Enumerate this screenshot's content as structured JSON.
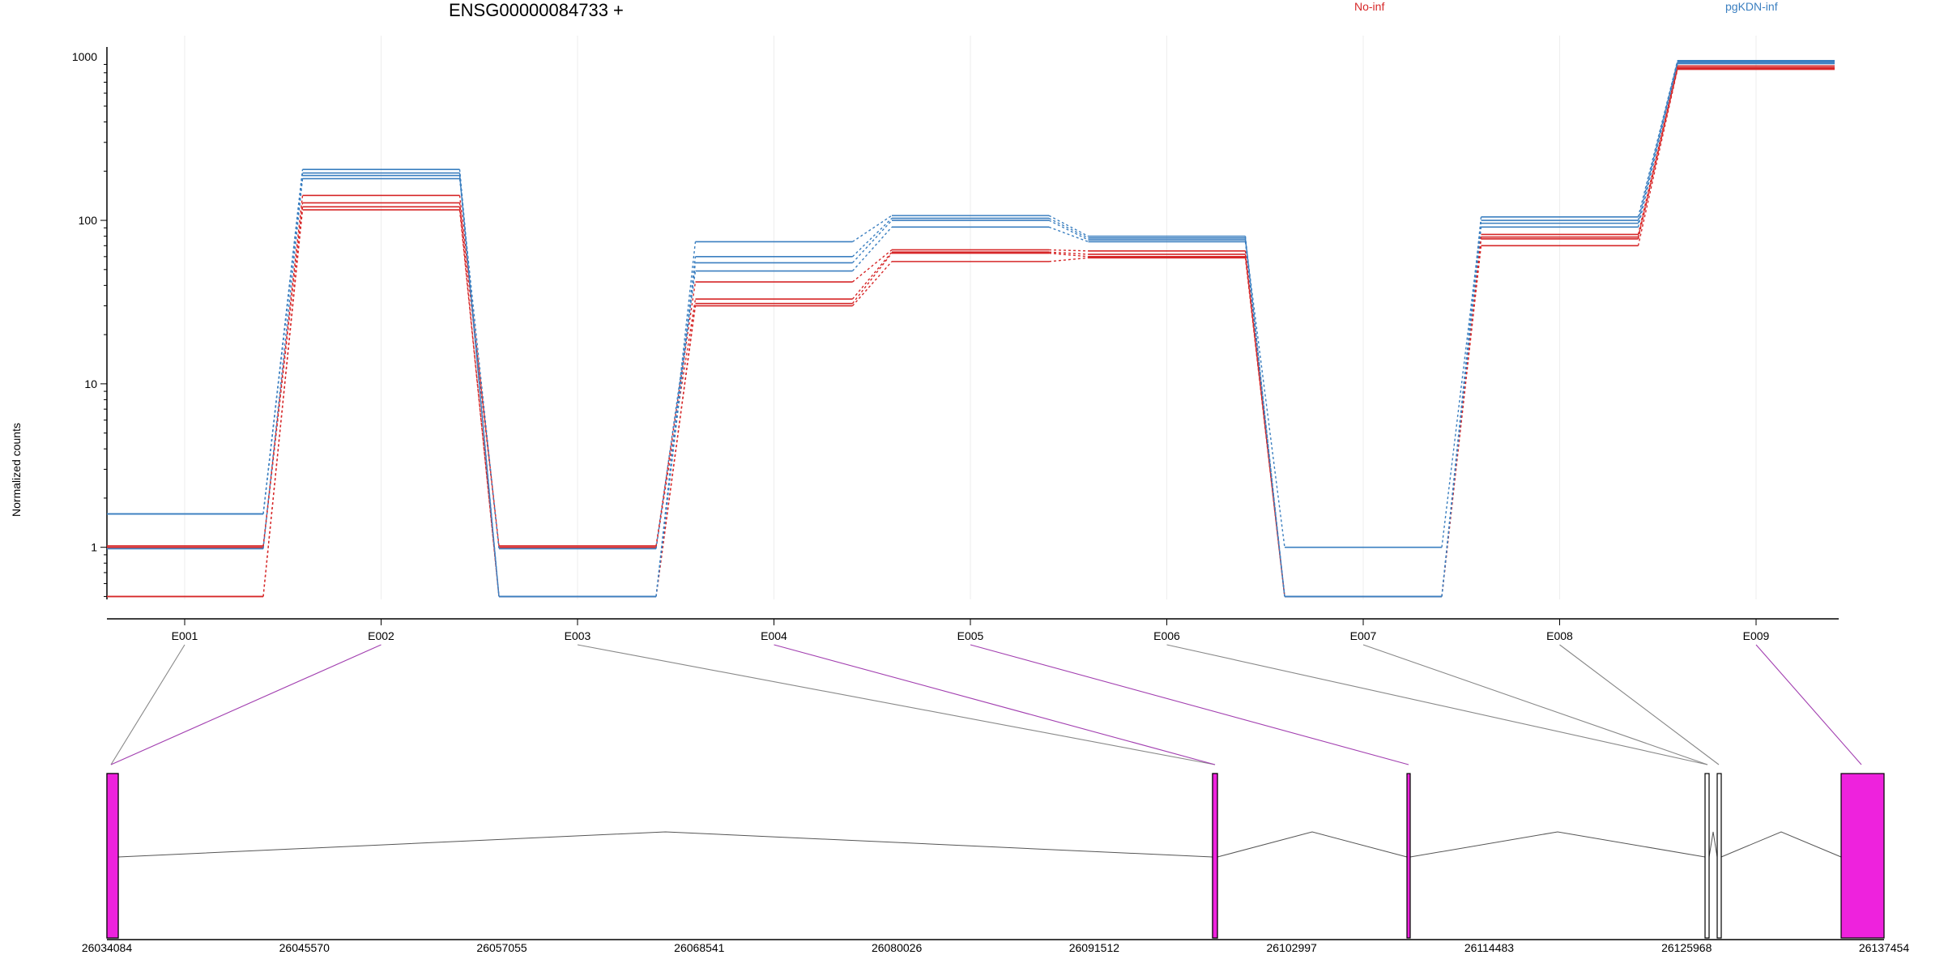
{
  "title": "ENSG00000084733 +",
  "chart_data": {
    "type": "line",
    "ylabel": "Normalized counts",
    "yscale": "log",
    "ylim": [
      0.48,
      1000
    ],
    "yticks": [
      1,
      10,
      100,
      1000
    ],
    "ytick_labels": [
      "1",
      "10",
      "100",
      "1000"
    ],
    "categories": [
      "E001",
      "E002",
      "E003",
      "E004",
      "E005",
      "E006",
      "E007",
      "E008",
      "E009"
    ],
    "legend": [
      {
        "label": "No-inf",
        "color": "#d62728"
      },
      {
        "label": "pgKDN-inf",
        "color": "#3b7fc0"
      }
    ],
    "series": [
      {
        "group": "No-inf",
        "color": "#d62728",
        "values": [
          1.02,
          142,
          1.02,
          42,
          66,
          65,
          0.5,
          82,
          880
        ]
      },
      {
        "group": "No-inf",
        "color": "#d62728",
        "values": [
          1.0,
          128,
          1.0,
          33,
          64,
          62,
          0.5,
          79,
          860
        ]
      },
      {
        "group": "No-inf",
        "color": "#d62728",
        "values": [
          0.5,
          121,
          0.5,
          31,
          63,
          60,
          0.5,
          77,
          850
        ]
      },
      {
        "group": "No-inf",
        "color": "#d62728",
        "values": [
          0.5,
          116,
          0.5,
          30,
          56,
          59,
          0.5,
          70,
          840
        ]
      },
      {
        "group": "pgKDN-inf",
        "color": "#3b7fc0",
        "values": [
          1.6,
          205,
          0.5,
          74,
          107,
          80,
          0.5,
          105,
          950
        ]
      },
      {
        "group": "pgKDN-inf",
        "color": "#3b7fc0",
        "values": [
          1.6,
          195,
          0.5,
          60,
          103,
          78,
          0.5,
          100,
          940
        ]
      },
      {
        "group": "pgKDN-inf",
        "color": "#3b7fc0",
        "values": [
          1.6,
          188,
          0.5,
          55,
          100,
          76,
          1.0,
          96,
          925
        ]
      },
      {
        "group": "pgKDN-inf",
        "color": "#3b7fc0",
        "values": [
          0.98,
          180,
          0.98,
          49,
          91,
          74,
          0.5,
          91,
          910
        ]
      }
    ],
    "gene_model": {
      "coord_labels": [
        "26034084",
        "26045570",
        "26057055",
        "26068541",
        "26080026",
        "26091512",
        "26102997",
        "26114483",
        "26125968",
        "26137454"
      ],
      "highlight_color": "#ee22dd",
      "exons": [
        {
          "id": "E001",
          "highlight": false
        },
        {
          "id": "E002",
          "highlight": true
        },
        {
          "id": "E003",
          "highlight": false
        },
        {
          "id": "E004",
          "highlight": true
        },
        {
          "id": "E005",
          "highlight": true
        },
        {
          "id": "E006",
          "highlight": false
        },
        {
          "id": "E007",
          "highlight": false
        },
        {
          "id": "E008",
          "highlight": false
        },
        {
          "id": "E009",
          "highlight": true
        }
      ]
    }
  }
}
